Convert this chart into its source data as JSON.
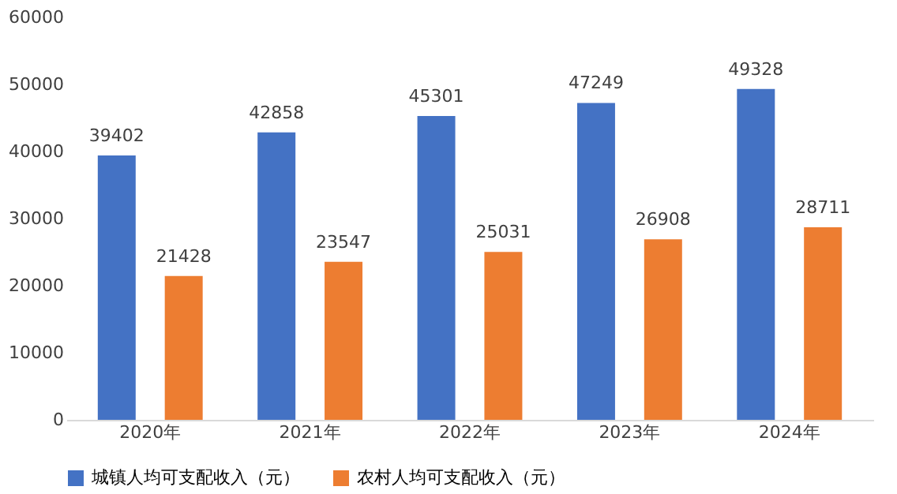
{
  "chart_data": {
    "type": "bar",
    "categories": [
      "2020年",
      "2021年",
      "2022年",
      "2023年",
      "2024年"
    ],
    "series": [
      {
        "name": "城镇人均可支配收入（元）",
        "color": "#4472c4",
        "values": [
          39402,
          42858,
          45301,
          47249,
          49328
        ]
      },
      {
        "name": "农村人均可支配收入（元）",
        "color": "#ed7d31",
        "values": [
          21428,
          23547,
          25031,
          26908,
          28711
        ]
      }
    ],
    "ylim": [
      0,
      60000
    ],
    "yticks": [
      0,
      10000,
      20000,
      30000,
      40000,
      50000,
      60000
    ],
    "data_labels": true,
    "legend": "bottom",
    "grid": false
  }
}
